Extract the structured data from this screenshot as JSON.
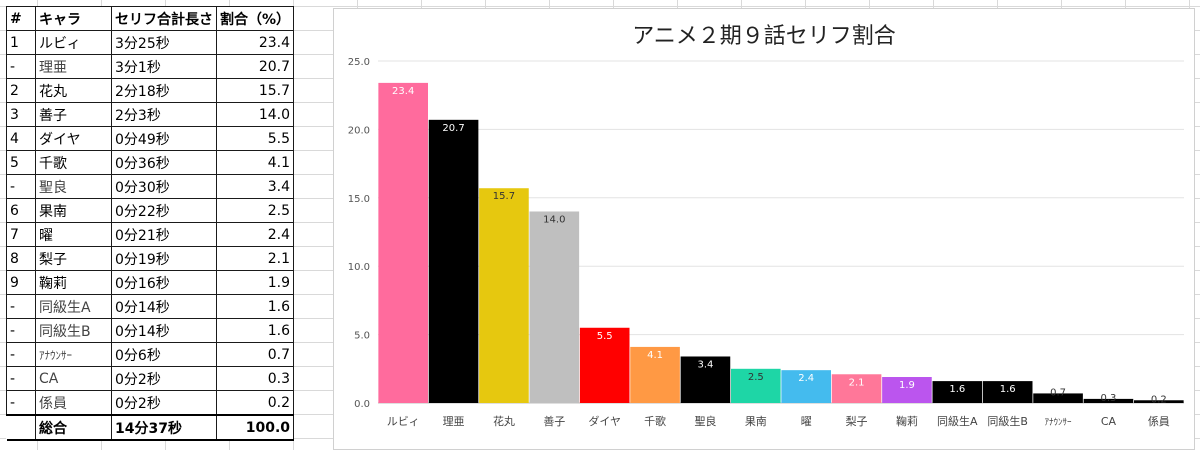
{
  "table": {
    "headers": [
      "#",
      "キャラ",
      "セリフ合計長さ",
      "割合（%）"
    ],
    "rows": [
      {
        "idx": "1",
        "name": "ルビィ",
        "bold": true,
        "length": "3分25秒",
        "pct": "23.4"
      },
      {
        "idx": "-",
        "name": "理亜",
        "bold": false,
        "length": "3分1秒",
        "pct": "20.7"
      },
      {
        "idx": "2",
        "name": "花丸",
        "bold": true,
        "length": "2分18秒",
        "pct": "15.7"
      },
      {
        "idx": "3",
        "name": "善子",
        "bold": true,
        "length": "2分3秒",
        "pct": "14.0"
      },
      {
        "idx": "4",
        "name": "ダイヤ",
        "bold": true,
        "length": "0分49秒",
        "pct": "5.5"
      },
      {
        "idx": "5",
        "name": "千歌",
        "bold": true,
        "length": "0分36秒",
        "pct": "4.1"
      },
      {
        "idx": "-",
        "name": "聖良",
        "bold": false,
        "length": "0分30秒",
        "pct": "3.4"
      },
      {
        "idx": "6",
        "name": "果南",
        "bold": true,
        "length": "0分22秒",
        "pct": "2.5"
      },
      {
        "idx": "7",
        "name": "曜",
        "bold": true,
        "length": "0分21秒",
        "pct": "2.4"
      },
      {
        "idx": "8",
        "name": "梨子",
        "bold": true,
        "length": "0分19秒",
        "pct": "2.1"
      },
      {
        "idx": "9",
        "name": "鞠莉",
        "bold": true,
        "length": "0分16秒",
        "pct": "1.9"
      },
      {
        "idx": "-",
        "name": "同級生A",
        "bold": false,
        "length": "0分14秒",
        "pct": "1.6"
      },
      {
        "idx": "-",
        "name": "同級生B",
        "bold": false,
        "length": "0分14秒",
        "pct": "1.6"
      },
      {
        "idx": "-",
        "name": "ｱﾅｳﾝｻｰ",
        "bold": false,
        "small": true,
        "length": "0分6秒",
        "pct": "0.7"
      },
      {
        "idx": "-",
        "name": "CA",
        "bold": false,
        "length": "0分2秒",
        "pct": "0.3"
      },
      {
        "idx": "-",
        "name": "係員",
        "bold": false,
        "length": "0分2秒",
        "pct": "0.2"
      }
    ],
    "total": {
      "label": "総合",
      "length": "14分37秒",
      "pct": "100.0"
    }
  },
  "chart_data": {
    "type": "bar",
    "title": "アニメ２期９話セリフ割合",
    "xlabel": "",
    "ylabel": "",
    "ylim": [
      0,
      25
    ],
    "yticks": [
      "0.0",
      "5.0",
      "10.0",
      "15.0",
      "20.0",
      "25.0"
    ],
    "grid": true,
    "categories": [
      "ルビィ",
      "理亜",
      "花丸",
      "善子",
      "ダイヤ",
      "千歌",
      "聖良",
      "果南",
      "曜",
      "梨子",
      "鞠莉",
      "同級生A",
      "同級生B",
      "ｱﾅｳﾝｻｰ",
      "CA",
      "係員"
    ],
    "values": [
      23.4,
      20.7,
      15.7,
      14.0,
      5.5,
      4.1,
      3.4,
      2.5,
      2.4,
      2.1,
      1.9,
      1.6,
      1.6,
      0.7,
      0.3,
      0.2
    ],
    "value_labels": [
      "23.4",
      "20.7",
      "15.7",
      "14.0",
      "5.5",
      "4.1",
      "3.4",
      "2.5",
      "2.4",
      "2.1",
      "1.9",
      "1.6",
      "1.6",
      "0.7",
      "0.3",
      "0.2"
    ],
    "colors": [
      "#ff6b9d",
      "#000000",
      "#e6c80f",
      "#bfbfbf",
      "#ff0000",
      "#ff9944",
      "#000000",
      "#1ed6a6",
      "#44bbee",
      "#ff7799",
      "#bb55ee",
      "#000000",
      "#000000",
      "#000000",
      "#000000",
      "#000000"
    ],
    "label_colors": [
      "#ffffff",
      "#ffffff",
      "#333333",
      "#333333",
      "#ffffff",
      "#ffffff",
      "#ffffff",
      "#333333",
      "#ffffff",
      "#ffffff",
      "#ffffff",
      "#ffffff",
      "#ffffff",
      "#333333",
      "#333333",
      "#333333"
    ]
  }
}
